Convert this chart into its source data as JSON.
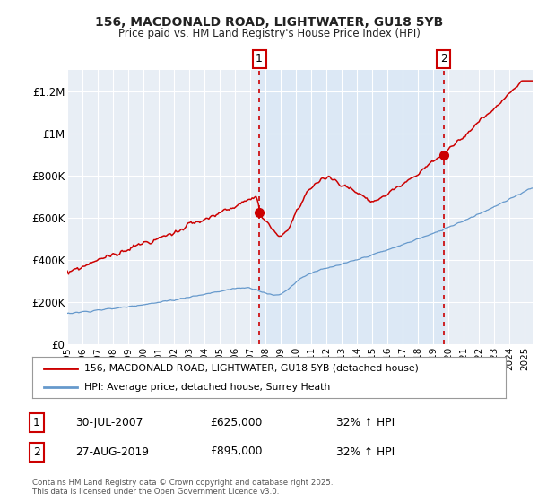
{
  "title": "156, MACDONALD ROAD, LIGHTWATER, GU18 5YB",
  "subtitle": "Price paid vs. HM Land Registry's House Price Index (HPI)",
  "legend_line1": "156, MACDONALD ROAD, LIGHTWATER, GU18 5YB (detached house)",
  "legend_line2": "HPI: Average price, detached house, Surrey Heath",
  "marker1_date": "30-JUL-2007",
  "marker1_price": 625000,
  "marker1_label": "32% ↑ HPI",
  "marker2_date": "27-AUG-2019",
  "marker2_price": 895000,
  "marker2_label": "32% ↑ HPI",
  "footnote": "Contains HM Land Registry data © Crown copyright and database right 2025.\nThis data is licensed under the Open Government Licence v3.0.",
  "ylim": [
    0,
    1300000
  ],
  "yticks": [
    0,
    200000,
    400000,
    600000,
    800000,
    1000000,
    1200000
  ],
  "ytick_labels": [
    "£0",
    "£200K",
    "£400K",
    "£600K",
    "£800K",
    "£1M",
    "£1.2M"
  ],
  "red_color": "#cc0000",
  "blue_color": "#6699cc",
  "shade_color": "#dce8f5",
  "bg_chart_color": "#e8eef5",
  "grid_color": "#ffffff",
  "marker1_x": 2007.58,
  "marker2_x": 2019.66,
  "xmin": 1995,
  "xmax": 2025.5
}
